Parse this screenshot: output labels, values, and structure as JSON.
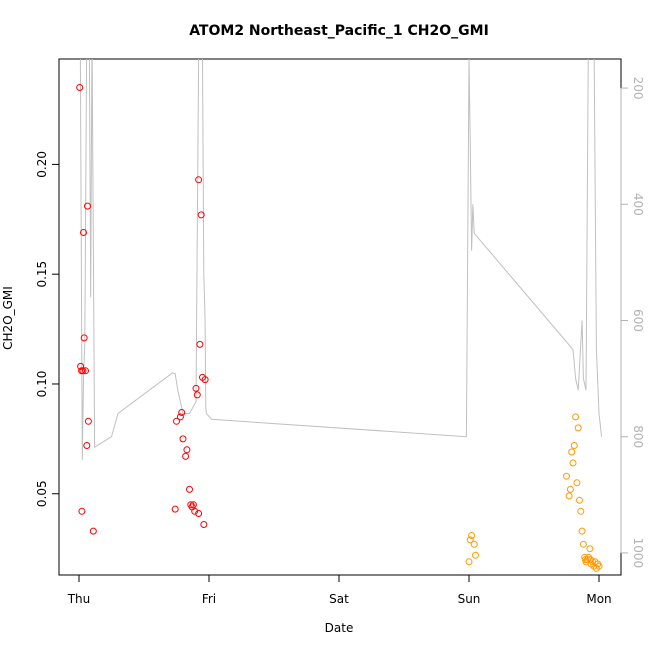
{
  "chart_data": {
    "type": "scatter",
    "title": "ATOM2 Northeast_Pacific_1 CH2O_GMI",
    "xlabel": "Date",
    "ylabel": "CH2O_GMI",
    "x_ticks": [
      "Thu",
      "Fri",
      "Sat",
      "Sun",
      "Mon"
    ],
    "x_range_days": [
      0,
      4
    ],
    "y_ticks": [
      "0.05",
      "0.10",
      "0.15",
      "0.20"
    ],
    "ylim": [
      0.013,
      0.248
    ],
    "y2_ticks": [
      "200",
      "400",
      "600",
      "800",
      "1000"
    ],
    "y2lim": [
      1038,
      150
    ],
    "grid": false,
    "series": [
      {
        "color": "#ff0000",
        "points": [
          [
            0.005,
            0.235
          ],
          [
            0.012,
            0.108
          ],
          [
            0.02,
            0.106
          ],
          [
            0.03,
            0.106
          ],
          [
            0.05,
            0.106
          ],
          [
            0.022,
            0.042
          ],
          [
            0.035,
            0.169
          ],
          [
            0.04,
            0.121
          ],
          [
            0.065,
            0.181
          ],
          [
            0.072,
            0.083
          ],
          [
            0.06,
            0.072
          ],
          [
            0.11,
            0.033
          ],
          [
            0.75,
            0.083
          ],
          [
            0.78,
            0.085
          ],
          [
            0.79,
            0.087
          ],
          [
            0.8,
            0.075
          ],
          [
            0.82,
            0.067
          ],
          [
            0.83,
            0.07
          ],
          [
            0.74,
            0.043
          ],
          [
            0.85,
            0.052
          ],
          [
            0.86,
            0.045
          ],
          [
            0.87,
            0.044
          ],
          [
            0.88,
            0.045
          ],
          [
            0.89,
            0.042
          ],
          [
            0.92,
            0.041
          ],
          [
            0.9,
            0.098
          ],
          [
            0.91,
            0.095
          ],
          [
            0.93,
            0.118
          ],
          [
            0.94,
            0.177
          ],
          [
            0.92,
            0.193
          ],
          [
            0.95,
            0.103
          ],
          [
            0.97,
            0.102
          ],
          [
            0.96,
            0.036
          ]
        ]
      },
      {
        "color": "#ff9900",
        "points": [
          [
            3.0,
            0.019
          ],
          [
            3.01,
            0.029
          ],
          [
            3.02,
            0.031
          ],
          [
            3.04,
            0.027
          ],
          [
            3.05,
            0.022
          ],
          [
            3.75,
            0.058
          ],
          [
            3.77,
            0.049
          ],
          [
            3.78,
            0.052
          ],
          [
            3.79,
            0.069
          ],
          [
            3.8,
            0.064
          ],
          [
            3.81,
            0.072
          ],
          [
            3.82,
            0.085
          ],
          [
            3.83,
            0.055
          ],
          [
            3.84,
            0.08
          ],
          [
            3.85,
            0.047
          ],
          [
            3.86,
            0.042
          ],
          [
            3.87,
            0.033
          ],
          [
            3.88,
            0.027
          ],
          [
            3.89,
            0.021
          ],
          [
            3.9,
            0.019
          ],
          [
            3.91,
            0.02
          ],
          [
            3.92,
            0.021
          ],
          [
            3.93,
            0.025
          ],
          [
            3.94,
            0.018
          ],
          [
            3.95,
            0.019
          ],
          [
            3.96,
            0.017
          ],
          [
            3.97,
            0.019
          ],
          [
            3.98,
            0.016
          ],
          [
            3.99,
            0.018
          ],
          [
            4.0,
            0.017
          ],
          [
            3.895,
            0.02
          ],
          [
            3.935,
            0.02
          ]
        ]
      }
    ],
    "pressure_line": {
      "color": "#c0c0c0",
      "points": [
        [
          0.0,
          40
        ],
        [
          0.01,
          120
        ],
        [
          0.025,
          840
        ],
        [
          0.035,
          700
        ],
        [
          0.045,
          640
        ],
        [
          0.06,
          90
        ],
        [
          0.07,
          110
        ],
        [
          0.08,
          150
        ],
        [
          0.09,
          560
        ],
        [
          0.1,
          100
        ],
        [
          0.12,
          818
        ],
        [
          0.25,
          800
        ],
        [
          0.3,
          760
        ],
        [
          0.72,
          690
        ],
        [
          0.74,
          692
        ],
        [
          0.76,
          720
        ],
        [
          0.78,
          740
        ],
        [
          0.8,
          760
        ],
        [
          0.82,
          760
        ],
        [
          0.85,
          760
        ],
        [
          0.9,
          740
        ],
        [
          0.92,
          150
        ],
        [
          0.93,
          140
        ],
        [
          0.95,
          148
        ],
        [
          0.96,
          520
        ],
        [
          0.97,
          600
        ],
        [
          0.975,
          750
        ],
        [
          0.98,
          760
        ],
        [
          1.02,
          770
        ],
        [
          2.98,
          800
        ],
        [
          3.0,
          150
        ],
        [
          3.01,
          300
        ],
        [
          3.02,
          480
        ],
        [
          3.03,
          400
        ],
        [
          3.04,
          450
        ],
        [
          3.8,
          650
        ],
        [
          3.82,
          700
        ],
        [
          3.84,
          720
        ],
        [
          3.86,
          640
        ],
        [
          3.87,
          600
        ],
        [
          3.88,
          700
        ],
        [
          3.9,
          720
        ],
        [
          3.92,
          60
        ],
        [
          3.94,
          40
        ],
        [
          3.96,
          70
        ],
        [
          3.98,
          650
        ],
        [
          4.0,
          760
        ],
        [
          4.02,
          800
        ]
      ]
    }
  }
}
